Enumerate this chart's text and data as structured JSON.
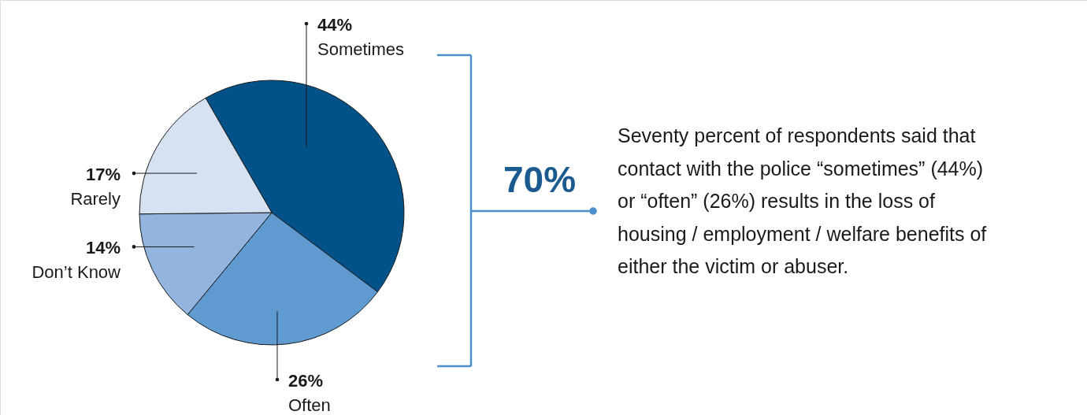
{
  "chart_data": {
    "type": "pie",
    "categories": [
      "Sometimes",
      "Often",
      "Don’t Know",
      "Rarely"
    ],
    "values": [
      44,
      26,
      14,
      17
    ],
    "colors": [
      "#005288",
      "#5f9bd0",
      "#92b4df",
      "#d6e2f2"
    ],
    "value_labels": [
      "44%",
      "26%",
      "14%",
      "17%"
    ],
    "annotations": [
      "70%",
      "Seventy percent of respondents said that\ncontact with the police “sometimes” (44%)\nor “often” (26%) results in the loss of\nhousing / employment / welfare benefits of\neither the victim or abuser."
    ]
  }
}
